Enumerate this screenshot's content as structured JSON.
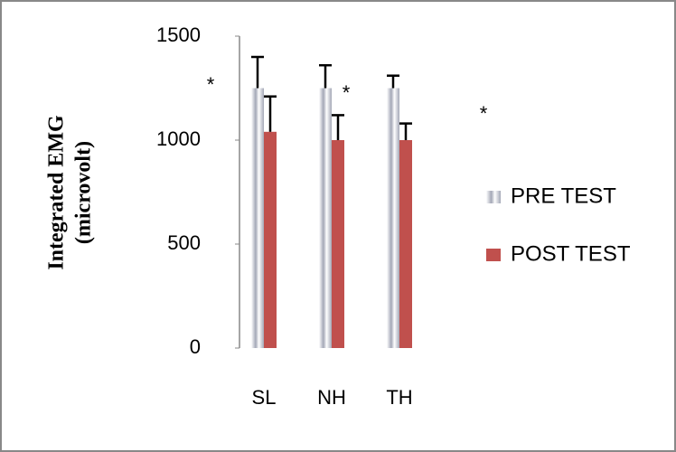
{
  "chart_data": {
    "type": "bar",
    "y_label": [
      "Integrated EMG",
      "(microvolt)"
    ],
    "categories": [
      "SL",
      "NH",
      "TH"
    ],
    "series": [
      {
        "name": "PRE TEST",
        "color": "#a3a7b6",
        "values": [
          1250,
          1250,
          1250
        ],
        "errors": [
          150,
          110,
          60
        ]
      },
      {
        "name": "POST TEST",
        "color": "#c0504d",
        "values": [
          1040,
          1000,
          1000
        ],
        "errors": [
          170,
          120,
          80
        ]
      }
    ],
    "annotations": [
      "*",
      "*",
      "*"
    ],
    "ylim": [
      0,
      1500
    ],
    "yticks": [
      0,
      500,
      1000,
      1500
    ],
    "grid": false,
    "legend": "right"
  }
}
